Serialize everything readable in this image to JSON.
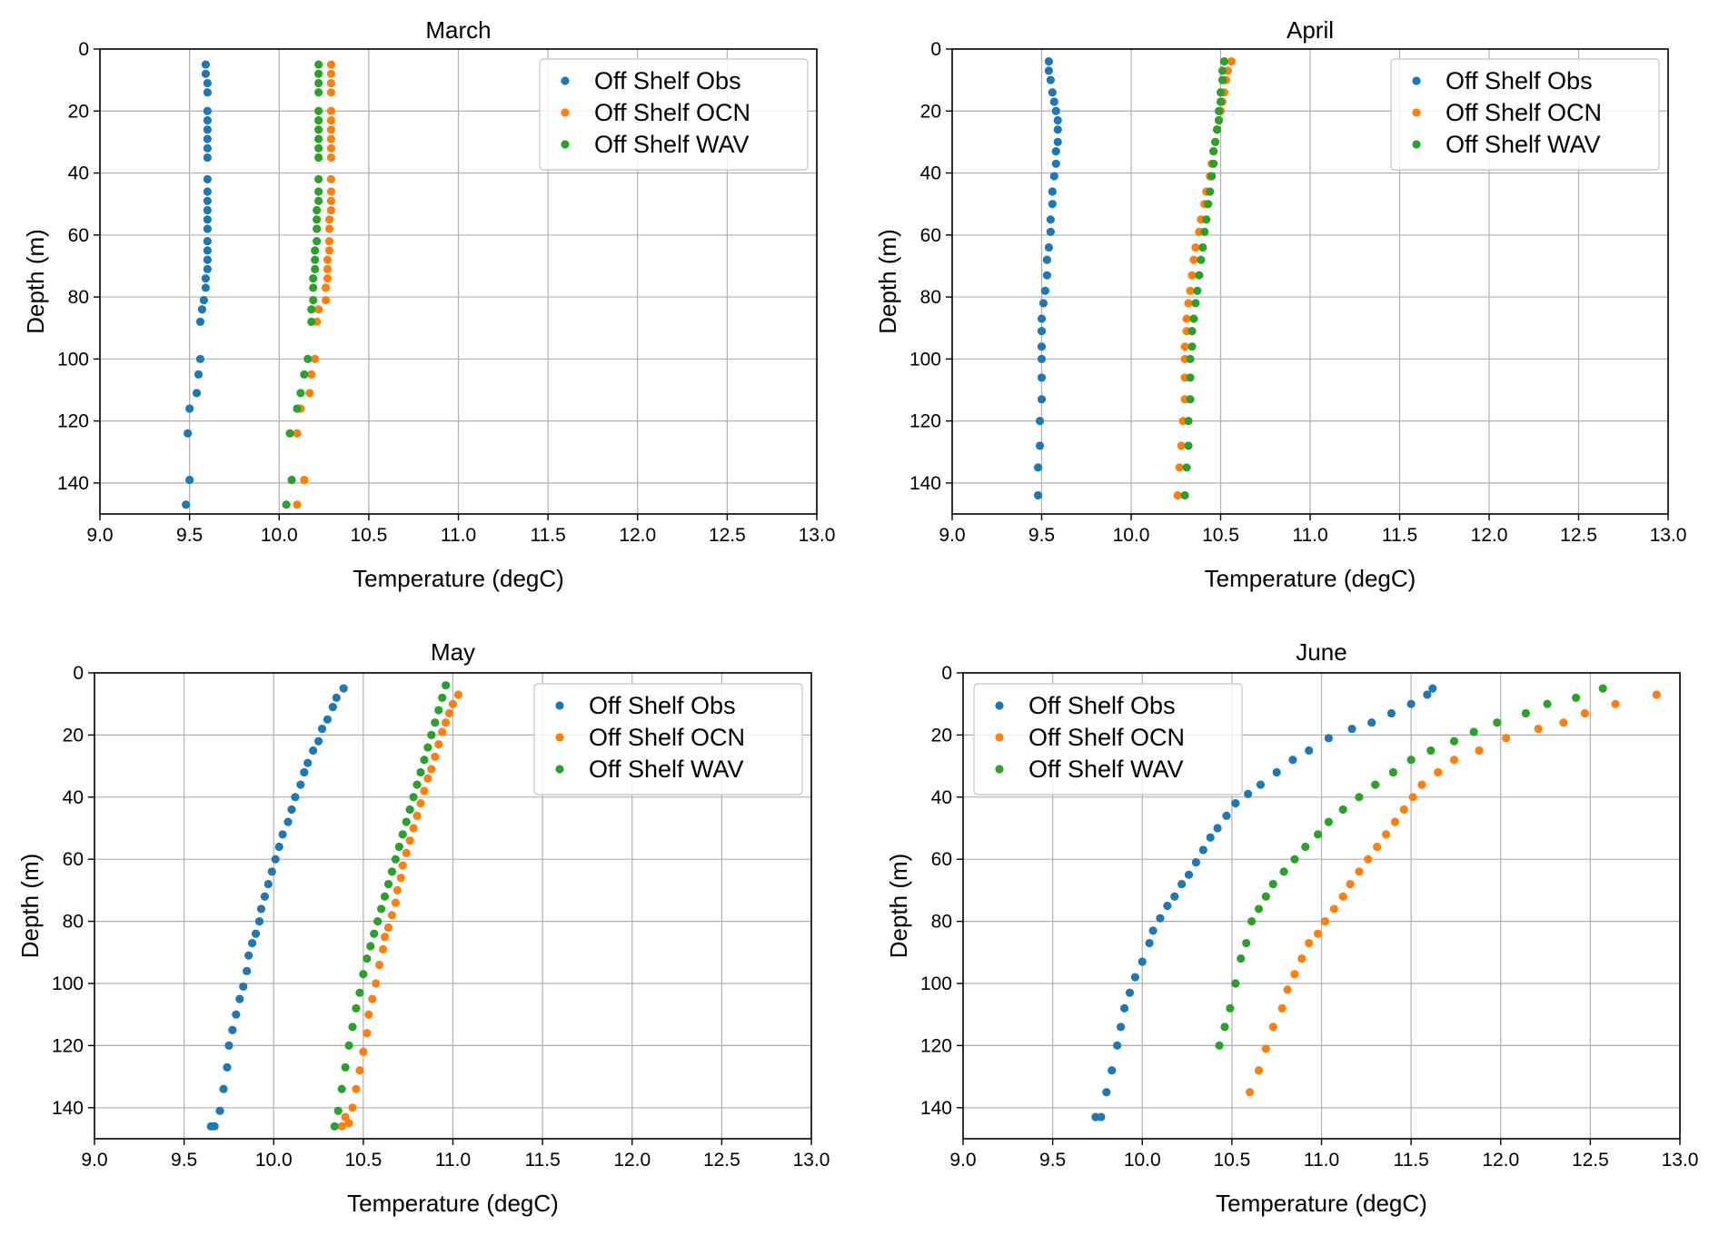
{
  "figure": {
    "xlabel": "Temperature (degC)",
    "ylabel": "Depth (m)",
    "xticks": [
      "9.0",
      "9.5",
      "10.0",
      "10.5",
      "11.0",
      "11.5",
      "12.0",
      "12.5",
      "13.0"
    ],
    "yticks": [
      "0",
      "20",
      "40",
      "60",
      "80",
      "100",
      "120",
      "140"
    ],
    "colors": {
      "obs": "#1f77b4",
      "ocn": "#ff7f0e",
      "wav": "#2ca02c"
    },
    "legend_labels": [
      "Off Shelf Obs",
      "Off Shelf OCN",
      "Off Shelf WAV"
    ]
  },
  "chart_data": [
    {
      "type": "scatter",
      "title": "March",
      "xlabel": "Temperature (degC)",
      "ylabel": "Depth (m)",
      "xlim": [
        9.0,
        13.0
      ],
      "ylim": [
        150,
        0
      ],
      "grid": true,
      "legend": "top-right",
      "series": [
        {
          "name": "Off Shelf Obs",
          "color": "#1f77b4",
          "x": [
            9.59,
            9.59,
            9.6,
            9.6,
            9.6,
            9.6,
            9.6,
            9.6,
            9.6,
            9.6,
            9.6,
            9.6,
            9.6,
            9.6,
            9.6,
            9.6,
            9.6,
            9.6,
            9.6,
            9.6,
            9.59,
            9.59,
            9.58,
            9.57,
            9.56,
            9.56,
            9.55,
            9.54,
            9.5,
            9.49
          ],
          "y": [
            5,
            8,
            11,
            14,
            20,
            23,
            26,
            29,
            32,
            35,
            42,
            46,
            49,
            52,
            55,
            58,
            62,
            65,
            68,
            71,
            74,
            77,
            81,
            84,
            88,
            100,
            105,
            111,
            116,
            124
          ]
        },
        {
          "name": "Off Shelf OCN",
          "color": "#ff7f0e",
          "x": [
            10.29,
            10.29,
            10.29,
            10.29,
            10.29,
            10.29,
            10.29,
            10.29,
            10.29,
            10.29,
            10.29,
            10.29,
            10.29,
            10.29,
            10.28,
            10.28,
            10.28,
            10.28,
            10.27,
            10.27,
            10.27,
            10.26,
            10.26,
            10.22,
            10.21,
            10.2,
            10.18,
            10.17,
            10.12,
            10.1
          ],
          "y": [
            5,
            8,
            11,
            14,
            20,
            23,
            26,
            29,
            32,
            35,
            42,
            46,
            49,
            52,
            55,
            58,
            62,
            65,
            68,
            71,
            74,
            77,
            81,
            84,
            88,
            100,
            105,
            111,
            116,
            124
          ]
        },
        {
          "name": "Off Shelf WAV",
          "color": "#2ca02c",
          "x": [
            10.22,
            10.22,
            10.22,
            10.22,
            10.22,
            10.22,
            10.22,
            10.22,
            10.22,
            10.22,
            10.22,
            10.22,
            10.22,
            10.21,
            10.21,
            10.21,
            10.21,
            10.2,
            10.2,
            10.2,
            10.19,
            10.19,
            10.19,
            10.18,
            10.18,
            10.16,
            10.14,
            10.12,
            10.1,
            10.06
          ],
          "y": [
            5,
            8,
            11,
            14,
            20,
            23,
            26,
            29,
            32,
            35,
            42,
            46,
            49,
            52,
            55,
            58,
            62,
            65,
            68,
            71,
            74,
            77,
            81,
            84,
            88,
            100,
            105,
            111,
            116,
            124
          ]
        }
      ],
      "extra_points": {
        "Off Shelf Obs": {
          "x": [
            9.5,
            9.48
          ],
          "y": [
            139,
            147
          ]
        },
        "Off Shelf OCN": {
          "x": [
            10.14,
            10.1
          ],
          "y": [
            139,
            147
          ]
        },
        "Off Shelf WAV": {
          "x": [
            10.07,
            10.04
          ],
          "y": [
            139,
            147
          ]
        }
      }
    },
    {
      "type": "scatter",
      "title": "April",
      "xlabel": "Temperature (degC)",
      "ylabel": "Depth (m)",
      "xlim": [
        9.0,
        13.0
      ],
      "ylim": [
        150,
        0
      ],
      "grid": true,
      "legend": "top-right",
      "series": [
        {
          "name": "Off Shelf Obs",
          "color": "#1f77b4",
          "x": [
            9.54,
            9.54,
            9.55,
            9.56,
            9.57,
            9.58,
            9.59,
            9.59,
            9.59,
            9.58,
            9.58,
            9.57,
            9.56,
            9.56,
            9.55,
            9.55,
            9.54,
            9.53,
            9.53,
            9.52,
            9.51,
            9.5,
            9.5,
            9.5,
            9.5,
            9.5,
            9.5,
            9.49,
            9.49,
            9.48,
            9.48
          ],
          "y": [
            4,
            7,
            10,
            14,
            17,
            20,
            23,
            26,
            30,
            33,
            37,
            41,
            46,
            50,
            55,
            59,
            64,
            68,
            73,
            78,
            82,
            87,
            91,
            96,
            100,
            106,
            113,
            120,
            128,
            135,
            144
          ]
        },
        {
          "name": "Off Shelf OCN",
          "color": "#ff7f0e",
          "x": [
            10.56,
            10.54,
            10.53,
            10.52,
            10.51,
            10.5,
            10.49,
            10.48,
            10.47,
            10.46,
            10.45,
            10.44,
            10.42,
            10.41,
            10.39,
            10.38,
            10.36,
            10.35,
            10.34,
            10.33,
            10.32,
            10.31,
            10.31,
            10.3,
            10.3,
            10.3,
            10.3,
            10.29,
            10.28,
            10.27,
            10.26
          ],
          "y": [
            4,
            7,
            10,
            14,
            17,
            20,
            23,
            26,
            30,
            33,
            37,
            41,
            46,
            50,
            55,
            59,
            64,
            68,
            73,
            78,
            82,
            87,
            91,
            96,
            100,
            106,
            113,
            120,
            128,
            135,
            144
          ]
        },
        {
          "name": "Off Shelf WAV",
          "color": "#2ca02c",
          "x": [
            10.52,
            10.51,
            10.51,
            10.5,
            10.5,
            10.49,
            10.49,
            10.48,
            10.47,
            10.46,
            10.46,
            10.45,
            10.44,
            10.43,
            10.42,
            10.41,
            10.4,
            10.39,
            10.38,
            10.37,
            10.36,
            10.35,
            10.34,
            10.34,
            10.33,
            10.33,
            10.33,
            10.32,
            10.32,
            10.31,
            10.3
          ],
          "y": [
            4,
            7,
            10,
            14,
            17,
            20,
            23,
            26,
            30,
            33,
            37,
            41,
            46,
            50,
            55,
            59,
            64,
            68,
            73,
            78,
            82,
            87,
            91,
            96,
            100,
            106,
            113,
            120,
            128,
            135,
            144
          ]
        }
      ]
    },
    {
      "type": "scatter",
      "title": "May",
      "xlabel": "Temperature (degC)",
      "ylabel": "Depth (m)",
      "xlim": [
        9.0,
        13.0
      ],
      "ylim": [
        150,
        0
      ],
      "grid": true,
      "legend": "top-right",
      "series": [
        {
          "name": "Off Shelf Obs",
          "color": "#1f77b4",
          "x": [
            10.39,
            10.35,
            10.33,
            10.3,
            10.27,
            10.25,
            10.22,
            10.19,
            10.17,
            10.15,
            10.12,
            10.1,
            10.08,
            10.05,
            10.03,
            10.01,
            9.99,
            9.97,
            9.95,
            9.93,
            9.92,
            9.9,
            9.88,
            9.86,
            9.85,
            9.83,
            9.81,
            9.79,
            9.77,
            9.75,
            9.74,
            9.72,
            9.7,
            9.67,
            9.65
          ],
          "y": [
            5,
            8,
            11,
            15,
            18,
            22,
            25,
            29,
            32,
            36,
            40,
            44,
            48,
            52,
            56,
            60,
            64,
            68,
            72,
            76,
            80,
            84,
            87,
            91,
            96,
            101,
            105,
            110,
            115,
            120,
            127,
            134,
            141,
            146,
            146
          ]
        },
        {
          "name": "Off Shelf OCN",
          "color": "#ff7f0e",
          "x": [
            11.03,
            11.0,
            10.98,
            10.96,
            10.94,
            10.92,
            10.9,
            10.88,
            10.86,
            10.84,
            10.82,
            10.8,
            10.78,
            10.76,
            10.74,
            10.72,
            10.71,
            10.69,
            10.68,
            10.66,
            10.64,
            10.62,
            10.61,
            10.59,
            10.57,
            10.55,
            10.53,
            10.52,
            10.5,
            10.48,
            10.46,
            10.44,
            10.42,
            10.4,
            10.38
          ],
          "y": [
            7,
            10,
            13,
            16,
            19,
            23,
            27,
            31,
            34,
            38,
            42,
            46,
            50,
            54,
            58,
            62,
            66,
            70,
            74,
            78,
            82,
            85,
            89,
            94,
            100,
            105,
            110,
            116,
            122,
            128,
            134,
            140,
            145,
            143,
            146
          ]
        },
        {
          "name": "Off Shelf WAV",
          "color": "#2ca02c",
          "x": [
            10.96,
            10.94,
            10.92,
            10.9,
            10.88,
            10.86,
            10.84,
            10.82,
            10.8,
            10.78,
            10.76,
            10.74,
            10.72,
            10.7,
            10.68,
            10.66,
            10.64,
            10.62,
            10.6,
            10.58,
            10.56,
            10.54,
            10.52,
            10.5,
            10.48,
            10.46,
            10.44,
            10.42,
            10.4,
            10.38,
            10.36,
            10.34
          ],
          "y": [
            4,
            8,
            12,
            16,
            20,
            24,
            28,
            32,
            36,
            40,
            44,
            48,
            52,
            56,
            60,
            64,
            68,
            72,
            76,
            80,
            84,
            88,
            92,
            97,
            103,
            108,
            114,
            120,
            127,
            134,
            141,
            146
          ]
        }
      ]
    },
    {
      "type": "scatter",
      "title": "June",
      "xlabel": "Temperature (degC)",
      "ylabel": "Depth (m)",
      "xlim": [
        9.0,
        13.0
      ],
      "ylim": [
        150,
        0
      ],
      "grid": true,
      "legend": "top-left",
      "series": [
        {
          "name": "Off Shelf Obs",
          "color": "#1f77b4",
          "x": [
            11.62,
            11.59,
            11.5,
            11.39,
            11.28,
            11.17,
            11.04,
            10.93,
            10.84,
            10.75,
            10.66,
            10.59,
            10.52,
            10.47,
            10.42,
            10.38,
            10.34,
            10.3,
            10.26,
            10.22,
            10.18,
            10.14,
            10.1,
            10.06,
            10.04,
            10.0,
            9.96,
            9.93,
            9.9,
            9.88,
            9.86,
            9.83,
            9.8,
            9.77,
            9.74
          ],
          "y": [
            5,
            7,
            10,
            13,
            16,
            18,
            21,
            25,
            28,
            32,
            36,
            39,
            42,
            46,
            50,
            53,
            57,
            61,
            65,
            68,
            72,
            75,
            79,
            83,
            87,
            93,
            98,
            103,
            108,
            114,
            120,
            128,
            135,
            143,
            143
          ]
        },
        {
          "name": "Off Shelf OCN",
          "color": "#ff7f0e",
          "x": [
            12.87,
            12.64,
            12.47,
            12.35,
            12.21,
            12.03,
            11.88,
            11.74,
            11.65,
            11.56,
            11.51,
            11.46,
            11.41,
            11.36,
            11.31,
            11.26,
            11.21,
            11.16,
            11.12,
            11.07,
            11.02,
            10.98,
            10.93,
            10.89,
            10.85,
            10.81,
            10.78,
            10.73,
            10.69,
            10.65,
            10.6
          ],
          "y": [
            7,
            10,
            13,
            16,
            18,
            21,
            25,
            28,
            32,
            36,
            40,
            44,
            48,
            52,
            56,
            60,
            64,
            68,
            72,
            76,
            80,
            84,
            87,
            92,
            97,
            102,
            108,
            114,
            121,
            128,
            135
          ]
        },
        {
          "name": "Off Shelf WAV",
          "color": "#2ca02c",
          "x": [
            12.57,
            12.42,
            12.26,
            12.14,
            11.98,
            11.85,
            11.74,
            11.61,
            11.5,
            11.4,
            11.3,
            11.21,
            11.12,
            11.04,
            10.98,
            10.91,
            10.85,
            10.79,
            10.73,
            10.69,
            10.65,
            10.61,
            10.58,
            10.55,
            10.52,
            10.49,
            10.46,
            10.43
          ],
          "y": [
            5,
            8,
            10,
            13,
            16,
            19,
            22,
            25,
            28,
            32,
            36,
            40,
            44,
            48,
            52,
            56,
            60,
            64,
            68,
            72,
            76,
            80,
            87,
            92,
            100,
            108,
            114,
            120
          ]
        }
      ]
    }
  ]
}
